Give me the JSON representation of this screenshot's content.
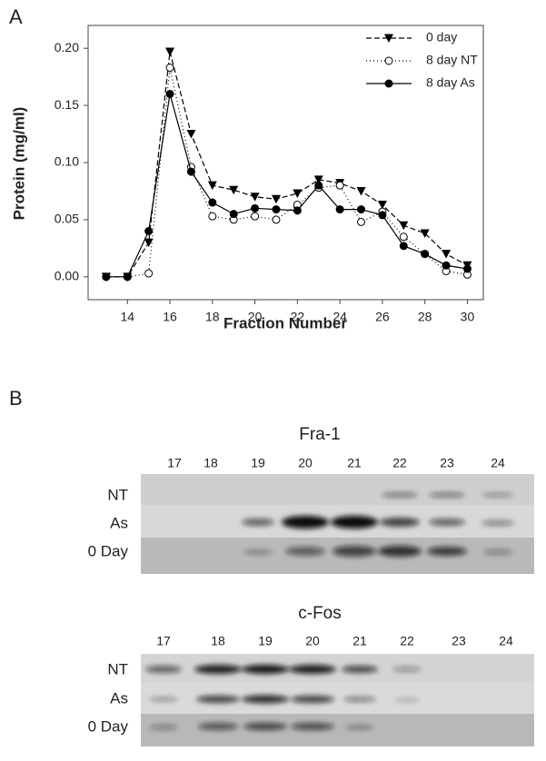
{
  "chart_data": {
    "type": "line",
    "panel_label": "A",
    "xlabel": "Fraction Number",
    "ylabel": "Protein (mg/ml)",
    "x": [
      13,
      14,
      15,
      16,
      17,
      18,
      19,
      20,
      21,
      22,
      23,
      24,
      25,
      26,
      27,
      28,
      29,
      30
    ],
    "series": [
      {
        "name": "0 day",
        "color": "#000000",
        "marker": "triangle-down",
        "dash": "6,3",
        "values": [
          0,
          0,
          0.03,
          0.197,
          0.125,
          0.08,
          0.076,
          0.07,
          0.068,
          0.073,
          0.085,
          0.082,
          0.075,
          0.063,
          0.045,
          0.038,
          0.02,
          0.01
        ]
      },
      {
        "name": "8 day NT",
        "color": "#000000",
        "marker": "open-circle",
        "dash": "1,3",
        "values": [
          0,
          0,
          0.003,
          0.183,
          0.096,
          0.053,
          0.05,
          0.053,
          0.05,
          0.063,
          0.078,
          0.08,
          0.048,
          0.057,
          0.035,
          0.02,
          0.005,
          0.002
        ]
      },
      {
        "name": "8 day As",
        "color": "#000000",
        "marker": "filled-circle",
        "dash": "none",
        "values": [
          0,
          0,
          0.04,
          0.16,
          0.092,
          0.065,
          0.055,
          0.06,
          0.059,
          0.058,
          0.08,
          0.059,
          0.059,
          0.054,
          0.027,
          0.02,
          0.01,
          0.007
        ]
      }
    ],
    "xlim": [
      12.15,
      30.75
    ],
    "ylim": [
      -0.02,
      0.22
    ],
    "xticks": [
      14,
      16,
      18,
      20,
      22,
      24,
      26,
      28,
      30
    ],
    "yticks": [
      {
        "value": 0,
        "label": "0.00"
      },
      0.05,
      {
        "value": 0.1,
        "label": "0.10"
      },
      0.15,
      {
        "value": 0.2,
        "label": "0.20"
      }
    ],
    "legend": "upper right"
  },
  "blots": {
    "panel_label": "B",
    "panels": [
      {
        "title": "Fra-1",
        "lanes": [
          "17",
          "18",
          "19",
          "20",
          "21",
          "22",
          "23",
          "24"
        ],
        "rows": [
          "NT",
          "As",
          "0 Day"
        ]
      },
      {
        "title": "c-Fos",
        "lanes": [
          "17",
          "18",
          "19",
          "20",
          "21",
          "22",
          "23",
          "24"
        ],
        "rows": [
          "NT",
          "As",
          "0 Day"
        ]
      }
    ]
  }
}
